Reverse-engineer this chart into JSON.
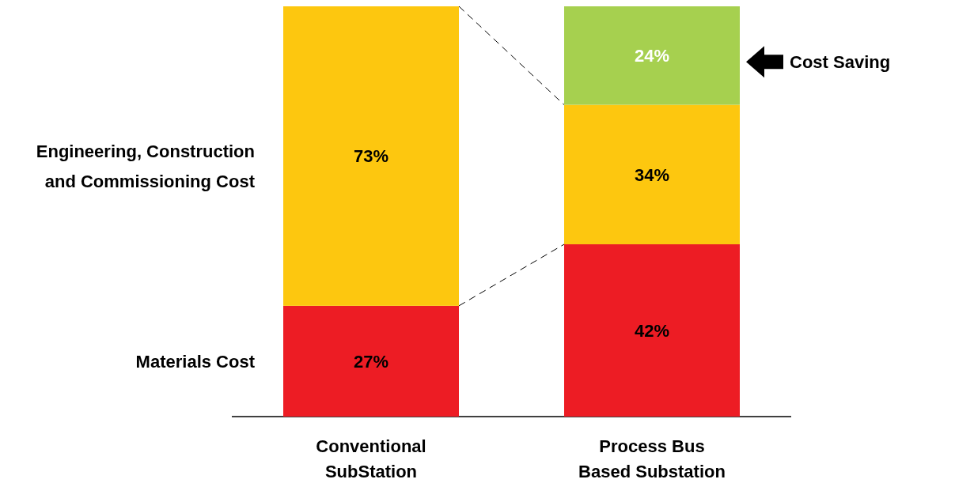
{
  "chart_data": {
    "type": "bar",
    "stacked": true,
    "categories": [
      "Conventional SubStation",
      "Process Bus Based Substation"
    ],
    "series": [
      {
        "name": "Materials Cost",
        "color": "#ed1c24",
        "values": [
          27,
          42
        ],
        "value_labels": [
          "27%",
          "42%"
        ]
      },
      {
        "name": "Engineering, Construction and Commissioning Cost",
        "color": "#fdc70f",
        "values": [
          73,
          34
        ],
        "value_labels": [
          "73%",
          "34%"
        ]
      },
      {
        "name": "Cost Saving",
        "color": "#a6d04f",
        "values": [
          null,
          24
        ],
        "value_labels": [
          null,
          "24%"
        ]
      }
    ]
  }
}
